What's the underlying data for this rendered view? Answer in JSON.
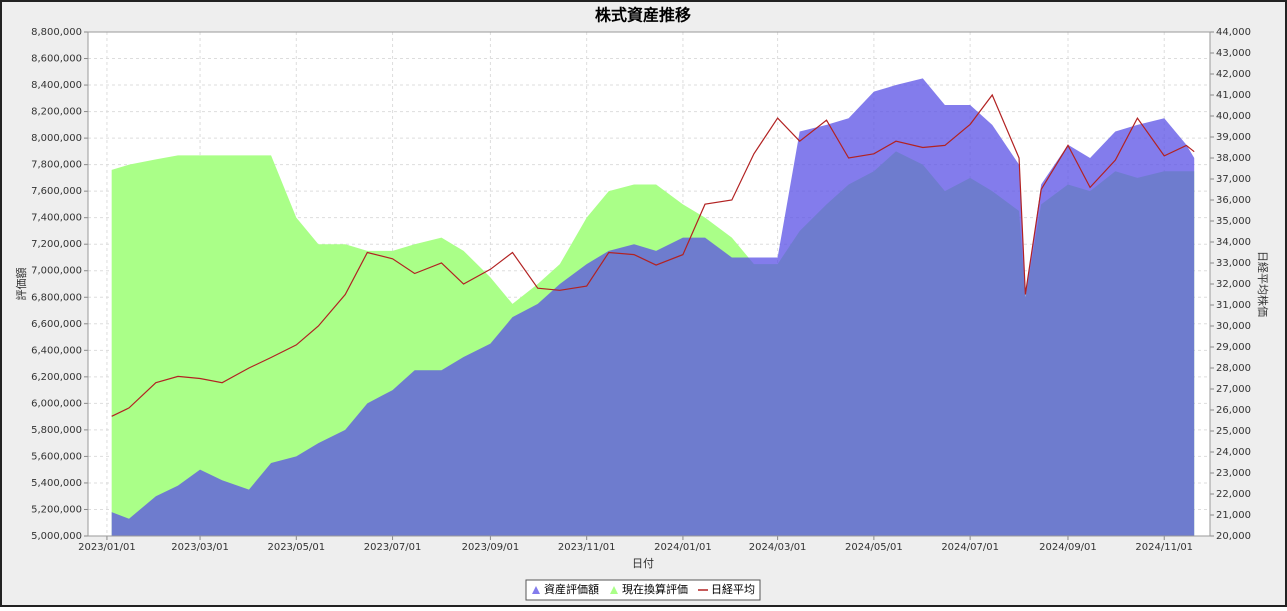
{
  "chart_data": {
    "type": "area-line",
    "title": "株式資産推移",
    "x_label": "日付",
    "y_label": "評価額",
    "y2_label": "日経平均株価",
    "x": [
      "2023/01/04",
      "2023/01/15",
      "2023/02/01",
      "2023/02/15",
      "2023/03/01",
      "2023/03/15",
      "2023/04/01",
      "2023/04/15",
      "2023/05/01",
      "2023/05/15",
      "2023/06/01",
      "2023/06/15",
      "2023/07/01",
      "2023/07/15",
      "2023/08/01",
      "2023/08/15",
      "2023/09/01",
      "2023/09/15",
      "2023/10/01",
      "2023/10/15",
      "2023/11/01",
      "2023/11/15",
      "2023/12/01",
      "2023/12/15",
      "2024/01/01",
      "2024/01/15",
      "2024/02/01",
      "2024/02/15",
      "2024/03/01",
      "2024/03/15",
      "2024/04/01",
      "2024/04/15",
      "2024/05/01",
      "2024/05/15",
      "2024/06/01",
      "2024/06/15",
      "2024/07/01",
      "2024/07/15",
      "2024/08/01",
      "2024/08/05",
      "2024/08/15",
      "2024/09/01",
      "2024/09/15",
      "2024/10/01",
      "2024/10/15",
      "2024/11/01",
      "2024/11/15",
      "2024/11/20"
    ],
    "series": [
      {
        "name": "資産評価額",
        "color": "rgba(90,80,230,0.75)",
        "kind": "area",
        "values": [
          5180000,
          5130000,
          5300000,
          5380000,
          5500000,
          5420000,
          5350000,
          5550000,
          5600000,
          5700000,
          5800000,
          6000000,
          6100000,
          6250000,
          6250000,
          6350000,
          6450000,
          6650000,
          6750000,
          6900000,
          7050000,
          7150000,
          7200000,
          7150000,
          7250000,
          7250000,
          7100000,
          7100000,
          7100000,
          8050000,
          8100000,
          8150000,
          8350000,
          8400000,
          8450000,
          8250000,
          8250000,
          8100000,
          7800000,
          6800000,
          7650000,
          7950000,
          7850000,
          8050000,
          8100000,
          8150000,
          7950000,
          7850000
        ]
      },
      {
        "name": "現在換算評価",
        "color": "#aaff88",
        "kind": "area",
        "values": [
          7760000,
          7800000,
          7840000,
          7870000,
          7870000,
          7870000,
          7870000,
          7870000,
          7400000,
          7200000,
          7200000,
          7150000,
          7150000,
          7200000,
          7250000,
          7150000,
          6950000,
          6750000,
          6900000,
          7050000,
          7400000,
          7600000,
          7650000,
          7650000,
          7500000,
          7400000,
          7250000,
          7050000,
          7050000,
          7300000,
          7500000,
          7650000,
          7750000,
          7900000,
          7800000,
          7600000,
          7700000,
          7600000,
          7450000,
          6800000,
          7500000,
          7650000,
          7600000,
          7750000,
          7700000,
          7750000,
          7750000,
          7750000
        ]
      },
      {
        "name": "日経平均",
        "color": "#b22222",
        "kind": "line",
        "axis": "y2",
        "values": [
          25700,
          26100,
          27300,
          27600,
          27500,
          27300,
          28000,
          28500,
          29100,
          30000,
          31500,
          33500,
          33200,
          32500,
          33000,
          32000,
          32700,
          33500,
          31800,
          31700,
          31900,
          33500,
          33400,
          32900,
          33400,
          35800,
          36000,
          38200,
          39900,
          38800,
          39800,
          38000,
          38200,
          38800,
          38500,
          38600,
          39600,
          41000,
          38000,
          31500,
          36500,
          38600,
          36600,
          37900,
          39900,
          38100,
          38600,
          38300
        ]
      }
    ],
    "xlim": [
      "2022/12/20",
      "2024/11/30"
    ],
    "xticks": [
      "2023/01/01",
      "2023/03/01",
      "2023/05/01",
      "2023/07/01",
      "2023/09/01",
      "2023/11/01",
      "2024/01/01",
      "2024/03/01",
      "2024/05/01",
      "2024/07/01",
      "2024/09/01",
      "2024/11/01"
    ],
    "ylim": [
      5000000,
      8800000
    ],
    "yticks": [
      {
        "value": 5000000,
        "label": "5,000,000"
      },
      {
        "value": 5200000,
        "label": "5,200,000"
      },
      {
        "value": 5400000,
        "label": "5,400,000"
      },
      {
        "value": 5600000,
        "label": "5,600,000"
      },
      {
        "value": 5800000,
        "label": "5,800,000"
      },
      {
        "value": 6000000,
        "label": "6,000,000"
      },
      {
        "value": 6200000,
        "label": "6,200,000"
      },
      {
        "value": 6400000,
        "label": "6,400,000"
      },
      {
        "value": 6600000,
        "label": "6,600,000"
      },
      {
        "value": 6800000,
        "label": "6,800,000"
      },
      {
        "value": 7000000,
        "label": "7,000,000"
      },
      {
        "value": 7200000,
        "label": "7,200,000"
      },
      {
        "value": 7400000,
        "label": "7,400,000"
      },
      {
        "value": 7600000,
        "label": "7,600,000"
      },
      {
        "value": 7800000,
        "label": "7,800,000"
      },
      {
        "value": 8000000,
        "label": "8,000,000"
      },
      {
        "value": 8200000,
        "label": "8,200,000"
      },
      {
        "value": 8400000,
        "label": "8,400,000"
      },
      {
        "value": 8600000,
        "label": "8,600,000"
      },
      {
        "value": 8800000,
        "label": "8,800,000"
      }
    ],
    "y2lim": [
      20000,
      44000
    ],
    "y2ticks": [
      {
        "value": 20000,
        "label": "20,000"
      },
      {
        "value": 21000,
        "label": "21,000"
      },
      {
        "value": 22000,
        "label": "22,000"
      },
      {
        "value": 23000,
        "label": "23,000"
      },
      {
        "value": 24000,
        "label": "24,000"
      },
      {
        "value": 25000,
        "label": "25,000"
      },
      {
        "value": 26000,
        "label": "26,000"
      },
      {
        "value": 27000,
        "label": "27,000"
      },
      {
        "value": 28000,
        "label": "28,000"
      },
      {
        "value": 29000,
        "label": "29,000"
      },
      {
        "value": 30000,
        "label": "30,000"
      },
      {
        "value": 31000,
        "label": "31,000"
      },
      {
        "value": 32000,
        "label": "32,000"
      },
      {
        "value": 33000,
        "label": "33,000"
      },
      {
        "value": 34000,
        "label": "34,000"
      },
      {
        "value": 35000,
        "label": "35,000"
      },
      {
        "value": 36000,
        "label": "36,000"
      },
      {
        "value": 37000,
        "label": "37,000"
      },
      {
        "value": 38000,
        "label": "38,000"
      },
      {
        "value": 39000,
        "label": "39,000"
      },
      {
        "value": 40000,
        "label": "40,000"
      },
      {
        "value": 41000,
        "label": "41,000"
      },
      {
        "value": 42000,
        "label": "42,000"
      },
      {
        "value": 43000,
        "label": "43,000"
      },
      {
        "value": 44000,
        "label": "44,000"
      }
    ],
    "grid": true,
    "legend": "bottom"
  }
}
